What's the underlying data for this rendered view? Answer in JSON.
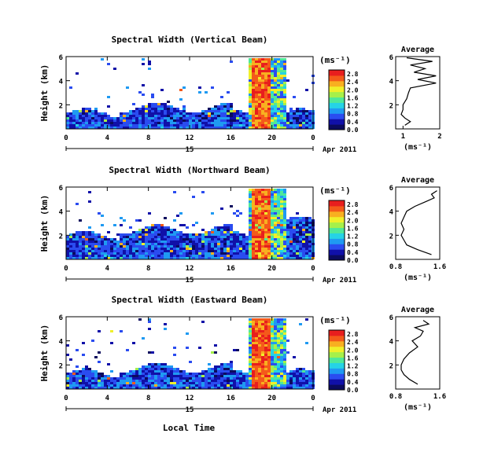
{
  "figure": {
    "xlabel": "Local Time",
    "date_label": "Apr 2011",
    "date_tick_label": "15",
    "colorbar_unit": "(ms⁻¹)",
    "average_title": "Average",
    "average_xlabel": "(ms⁻¹)",
    "colormap": [
      "#0b0b5e",
      "#1010a8",
      "#2a4cf0",
      "#1f9af2",
      "#25d3e6",
      "#4ee89a",
      "#a6f04a",
      "#f0f02a",
      "#f8b020",
      "#f45a1a",
      "#e81e1e"
    ]
  },
  "chart_data": [
    {
      "type": "heatmap",
      "title": "Spectral Width (Vertical Beam)",
      "ylabel": "Height (km)",
      "xlim": [
        0,
        24
      ],
      "ylim": [
        0,
        6
      ],
      "x_ticks": [
        "0",
        "4",
        "8",
        "12",
        "16",
        "20",
        "0"
      ],
      "y_ticks": [
        "2",
        "4",
        "6"
      ],
      "colorbar_ticks": [
        "0.0",
        "0.4",
        "0.8",
        "1.2",
        "1.6",
        "2.0",
        "2.4",
        "2.8"
      ],
      "colorbar_range": [
        0,
        3.0
      ],
      "profile": {
        "title": "Average",
        "xlim": [
          0.8,
          2.0
        ],
        "x_ticks": [
          "1",
          "2"
        ],
        "y_ticks": [
          "2",
          "4",
          "6"
        ],
        "height_km": [
          0.3,
          0.6,
          0.9,
          1.2,
          1.6,
          2.0,
          2.5,
          3.0,
          3.4,
          3.8,
          4.1,
          4.4,
          4.7,
          5.0,
          5.3,
          5.6,
          5.9
        ],
        "width": [
          1.05,
          1.2,
          1.05,
          0.95,
          1.0,
          1.0,
          1.1,
          1.15,
          1.2,
          1.9,
          1.4,
          1.9,
          1.3,
          1.6,
          1.2,
          1.8,
          1.1
        ]
      }
    },
    {
      "type": "heatmap",
      "title": "Spectral Width (Northward Beam)",
      "ylabel": "Height (km)",
      "xlim": [
        0,
        24
      ],
      "ylim": [
        0,
        6
      ],
      "x_ticks": [
        "0",
        "4",
        "8",
        "12",
        "16",
        "20",
        "0"
      ],
      "y_ticks": [
        "2",
        "4",
        "6"
      ],
      "colorbar_ticks": [
        "0.0",
        "0.4",
        "0.8",
        "1.2",
        "1.6",
        "2.0",
        "2.4",
        "2.8"
      ],
      "colorbar_range": [
        0,
        3.0
      ],
      "profile": {
        "title": "Average",
        "xlim": [
          0.8,
          1.6
        ],
        "x_ticks": [
          "0.8",
          "1.6"
        ],
        "y_ticks": [
          "2",
          "4",
          "6"
        ],
        "height_km": [
          0.4,
          0.8,
          1.2,
          1.6,
          2.0,
          2.5,
          3.0,
          3.5,
          4.0,
          4.4,
          4.8,
          5.1,
          5.4,
          5.7
        ],
        "width": [
          1.45,
          1.2,
          1.0,
          0.95,
          0.9,
          0.95,
          0.9,
          0.95,
          1.0,
          1.15,
          1.35,
          1.5,
          1.45,
          1.55
        ]
      }
    },
    {
      "type": "heatmap",
      "title": "Spectral Width (Eastward Beam)",
      "ylabel": "Height (km)",
      "xlim": [
        0,
        24
      ],
      "ylim": [
        0,
        6
      ],
      "x_ticks": [
        "0",
        "4",
        "8",
        "12",
        "16",
        "20",
        "0"
      ],
      "y_ticks": [
        "2",
        "4",
        "6"
      ],
      "colorbar_ticks": [
        "0.0",
        "0.4",
        "0.8",
        "1.2",
        "1.6",
        "2.0",
        "2.4",
        "2.8"
      ],
      "colorbar_range": [
        0,
        3.0
      ],
      "profile": {
        "title": "Average",
        "xlim": [
          0.8,
          1.6
        ],
        "x_ticks": [
          "0.8",
          "1.6"
        ],
        "y_ticks": [
          "2",
          "4",
          "6"
        ],
        "height_km": [
          0.4,
          0.8,
          1.2,
          1.6,
          2.0,
          2.5,
          3.0,
          3.5,
          4.0,
          4.4,
          4.8,
          5.1,
          5.4,
          5.7
        ],
        "width": [
          1.2,
          1.05,
          0.95,
          0.9,
          0.9,
          0.95,
          1.05,
          1.2,
          1.1,
          1.25,
          1.3,
          1.15,
          1.4,
          1.3
        ]
      }
    }
  ]
}
